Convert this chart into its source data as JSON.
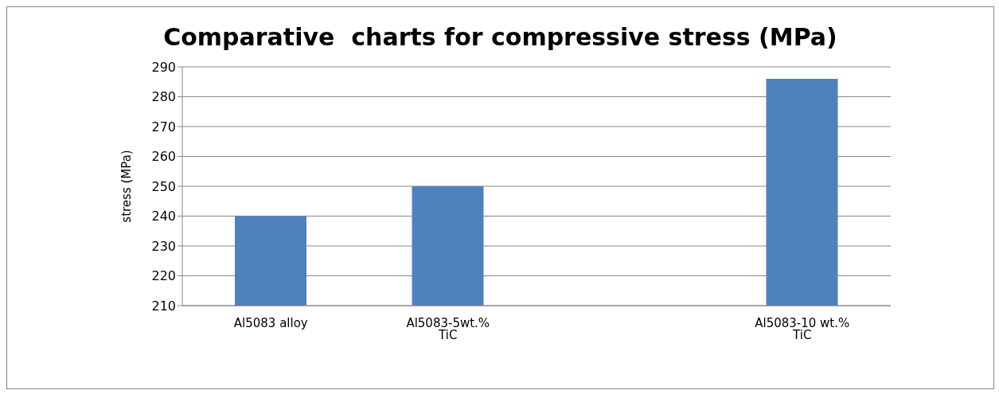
{
  "chart_data": {
    "type": "bar",
    "title": "Comparative  charts for compressive stress (MPa)",
    "ylabel": "stress (MPa)",
    "categories": [
      "Al5083 alloy",
      "Al5083-5wt.% TiC",
      null,
      "Al5083-10 wt.% TiC"
    ],
    "values": [
      240,
      250,
      null,
      286
    ],
    "color": "#4f81bd",
    "ylim": [
      210,
      290
    ],
    "yticks": [
      210,
      220,
      230,
      240,
      250,
      260,
      270,
      280,
      290
    ],
    "grid": "y"
  }
}
